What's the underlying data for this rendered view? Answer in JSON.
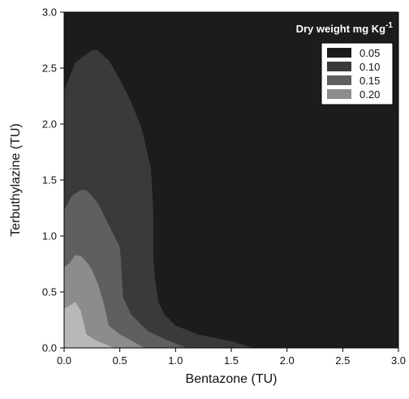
{
  "chart_data": {
    "type": "filled-contour",
    "xlabel": "Bentazone (TU)",
    "ylabel": "Terbuthylazine (TU)",
    "xlim": [
      0,
      3
    ],
    "ylim": [
      0,
      3
    ],
    "x_ticks": [
      "0.0",
      "0.5",
      "1.0",
      "1.5",
      "2.0",
      "2.5",
      "3.0"
    ],
    "y_ticks": [
      "0.0",
      "0.5",
      "1.0",
      "1.5",
      "2.0",
      "2.5",
      "3.0"
    ],
    "x_tick_values": [
      0,
      0.5,
      1,
      1.5,
      2,
      2.5,
      3
    ],
    "y_tick_values": [
      0,
      0.5,
      1,
      1.5,
      2,
      2.5,
      3
    ],
    "grid": false,
    "legend": {
      "title": "Dry weight mg Kg",
      "title_superscript": "-1",
      "placement": "top-right",
      "entries": [
        {
          "label": "0.05",
          "color": "#1c1c1c"
        },
        {
          "label": "0.10",
          "color": "#3a3a3a"
        },
        {
          "label": "0.15",
          "color": "#5f5f5f"
        },
        {
          "label": "0.20",
          "color": "#8c8c8c"
        }
      ]
    },
    "background_color": "#1c1c1c",
    "levels": [
      {
        "level": "0.10",
        "color": "#3a3a3a",
        "boundary": [
          [
            0,
            0
          ],
          [
            0,
            2.3
          ],
          [
            0.1,
            2.55
          ],
          [
            0.25,
            2.66
          ],
          [
            0.3,
            2.66
          ],
          [
            0.4,
            2.57
          ],
          [
            0.5,
            2.4
          ],
          [
            0.6,
            2.2
          ],
          [
            0.7,
            1.95
          ],
          [
            0.78,
            1.6
          ],
          [
            0.8,
            1.2
          ],
          [
            0.8,
            0.8
          ],
          [
            0.82,
            0.58
          ],
          [
            0.85,
            0.4
          ],
          [
            0.9,
            0.3
          ],
          [
            1.0,
            0.2
          ],
          [
            1.2,
            0.12
          ],
          [
            1.5,
            0.06
          ],
          [
            1.7,
            0
          ]
        ]
      },
      {
        "level": "0.15",
        "color": "#5f5f5f",
        "boundary": [
          [
            0,
            0
          ],
          [
            0,
            1.23
          ],
          [
            0.07,
            1.36
          ],
          [
            0.15,
            1.41
          ],
          [
            0.2,
            1.41
          ],
          [
            0.3,
            1.3
          ],
          [
            0.4,
            1.1
          ],
          [
            0.45,
            1.0
          ],
          [
            0.5,
            0.9
          ],
          [
            0.51,
            0.78
          ],
          [
            0.52,
            0.6
          ],
          [
            0.53,
            0.45
          ],
          [
            0.6,
            0.3
          ],
          [
            0.75,
            0.15
          ],
          [
            0.9,
            0.08
          ],
          [
            1.05,
            0.02
          ],
          [
            1.1,
            0
          ]
        ]
      },
      {
        "level": "0.20",
        "color": "#8c8c8c",
        "boundary": [
          [
            0,
            0
          ],
          [
            0,
            0.72
          ],
          [
            0.05,
            0.76
          ],
          [
            0.1,
            0.83
          ],
          [
            0.15,
            0.82
          ],
          [
            0.2,
            0.77
          ],
          [
            0.25,
            0.7
          ],
          [
            0.3,
            0.58
          ],
          [
            0.35,
            0.42
          ],
          [
            0.4,
            0.2
          ],
          [
            0.5,
            0.12
          ],
          [
            0.65,
            0.04
          ],
          [
            0.72,
            0
          ]
        ]
      },
      {
        "level": "0.25",
        "color": "#b8b8b8",
        "boundary": [
          [
            0,
            0
          ],
          [
            0,
            0.35
          ],
          [
            0.05,
            0.38
          ],
          [
            0.1,
            0.41
          ],
          [
            0.15,
            0.33
          ],
          [
            0.2,
            0.12
          ],
          [
            0.3,
            0.06
          ],
          [
            0.4,
            0.02
          ],
          [
            0.45,
            0
          ]
        ]
      }
    ]
  }
}
